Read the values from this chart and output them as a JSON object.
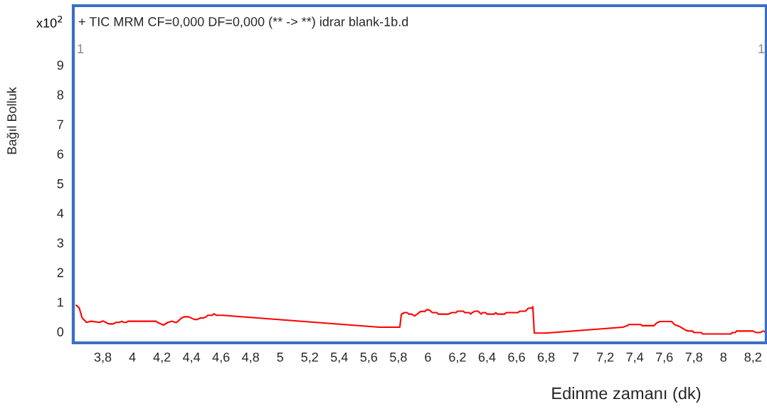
{
  "chart_data": {
    "type": "line",
    "title": "+ TIC MRM CF=0,000 DF=0,000 (** -> **) idrar blank-1b.d",
    "xlabel": "Edinme zamanı (dk)",
    "ylabel": "Bağıl Bolluk",
    "annotations": [
      "x10$^{2}$",
      "1",
      "1"
    ],
    "xlim": [
      3.6,
      8.29
    ],
    "ylim": [
      -0.38,
      9.8
    ],
    "xticks": [
      {
        "value": 3.8,
        "label": "3,8"
      },
      4,
      {
        "value": 4.2,
        "label": "4,2"
      },
      {
        "value": 4.4,
        "label": "4,4"
      },
      {
        "value": 4.6,
        "label": "4,6"
      },
      {
        "value": 4.8,
        "label": "4,8"
      },
      5,
      {
        "value": 5.2,
        "label": "5,2"
      },
      {
        "value": 5.4,
        "label": "5,4"
      },
      {
        "value": 5.6,
        "label": "5,6"
      },
      {
        "value": 5.8,
        "label": "5,8"
      },
      6,
      {
        "value": 6.2,
        "label": "6,2"
      },
      {
        "value": 6.4,
        "label": "6,4"
      },
      {
        "value": 6.6,
        "label": "6,6"
      },
      {
        "value": 6.8,
        "label": "6,8"
      },
      7,
      {
        "value": 7.2,
        "label": "7,2"
      },
      {
        "value": 7.4,
        "label": "7,4"
      },
      {
        "value": 7.6,
        "label": "7,6"
      },
      {
        "value": 7.8,
        "label": "7,8"
      },
      8,
      {
        "value": 8.2,
        "label": "8,2"
      }
    ],
    "yticks": [
      0,
      1,
      2,
      3,
      4,
      5,
      6,
      7,
      8,
      9
    ],
    "grid": false,
    "marker": "none",
    "line_style": "solid",
    "series": [
      {
        "color": "#ff0000",
        "x": [
          3.62,
          3.64,
          3.66,
          3.69,
          3.72,
          3.78,
          3.8,
          3.82,
          3.84,
          3.87,
          3.89,
          3.91,
          3.93,
          3.94,
          3.96,
          3.97,
          4.16,
          4.17,
          4.21,
          4.24,
          4.27,
          4.29,
          4.3,
          4.33,
          4.35,
          4.38,
          4.42,
          4.44,
          4.46,
          4.48,
          4.5,
          4.51,
          4.54,
          4.55,
          4.57,
          4.61,
          5.67,
          5.8,
          5.81,
          5.82,
          5.84,
          5.86,
          5.87,
          5.89,
          5.91,
          5.93,
          5.95,
          5.98,
          5.99,
          6.01,
          6.03,
          6.06,
          6.07,
          6.14,
          6.16,
          6.19,
          6.2,
          6.24,
          6.25,
          6.28,
          6.29,
          6.3,
          6.32,
          6.34,
          6.36,
          6.37,
          6.39,
          6.4,
          6.45,
          6.46,
          6.47,
          6.52,
          6.53,
          6.61,
          6.62,
          6.66,
          6.68,
          6.7,
          6.71,
          6.72,
          6.8,
          7.32,
          7.35,
          7.36,
          7.44,
          7.45,
          7.53,
          7.55,
          7.57,
          7.65,
          7.67,
          7.7,
          7.72,
          7.74,
          7.76,
          7.79,
          7.8,
          7.85,
          7.86,
          8.05,
          8.06,
          8.08,
          8.09,
          8.2,
          8.22,
          8.25,
          8.27,
          8.29
        ],
        "values": [
          0.89,
          0.8,
          0.46,
          0.31,
          0.35,
          0.31,
          0.36,
          0.31,
          0.26,
          0.26,
          0.31,
          0.31,
          0.35,
          0.31,
          0.31,
          0.35,
          0.35,
          0.31,
          0.22,
          0.31,
          0.35,
          0.31,
          0.31,
          0.45,
          0.5,
          0.5,
          0.41,
          0.41,
          0.46,
          0.46,
          0.5,
          0.55,
          0.55,
          0.6,
          0.55,
          0.55,
          0.15,
          0.15,
          0.15,
          0.58,
          0.64,
          0.64,
          0.59,
          0.59,
          0.53,
          0.6,
          0.68,
          0.68,
          0.74,
          0.73,
          0.64,
          0.64,
          0.59,
          0.59,
          0.64,
          0.64,
          0.69,
          0.69,
          0.64,
          0.64,
          0.59,
          0.64,
          0.69,
          0.69,
          0.59,
          0.64,
          0.64,
          0.59,
          0.59,
          0.64,
          0.59,
          0.59,
          0.64,
          0.64,
          0.69,
          0.69,
          0.79,
          0.79,
          0.84,
          -0.05,
          -0.05,
          0.15,
          0.2,
          0.24,
          0.24,
          0.2,
          0.2,
          0.3,
          0.34,
          0.34,
          0.23,
          0.18,
          0.12,
          0.06,
          0.02,
          0.02,
          -0.03,
          -0.03,
          -0.08,
          -0.08,
          -0.03,
          -0.03,
          0.02,
          0.02,
          -0.03,
          -0.03,
          0.02,
          -0.03
        ]
      }
    ]
  }
}
